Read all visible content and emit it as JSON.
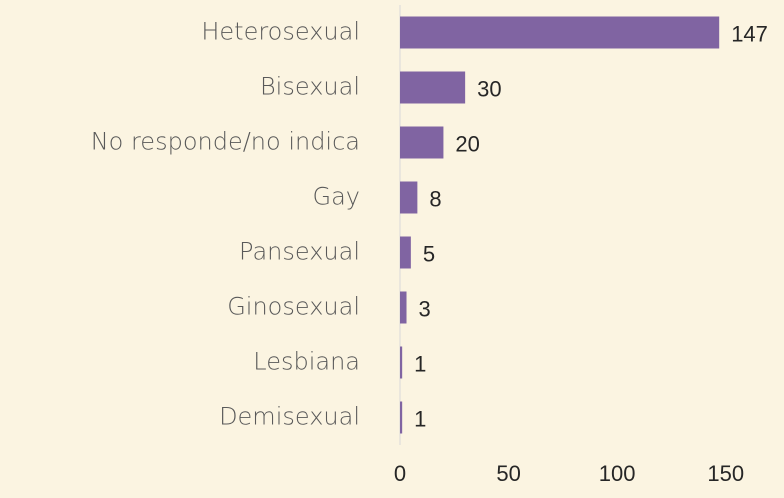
{
  "chart_data": {
    "type": "barh",
    "categories": [
      "Heterosexual",
      "Bisexual",
      "No responde/no indica",
      "Gay",
      "Pansexual",
      "Ginosexual",
      "Lesbiana",
      "Demisexual"
    ],
    "values": [
      147,
      30,
      20,
      8,
      5,
      3,
      1,
      1
    ],
    "color": "#8064a2",
    "xlim": [
      0,
      175
    ],
    "xticks": [
      0,
      50,
      100,
      150
    ]
  }
}
